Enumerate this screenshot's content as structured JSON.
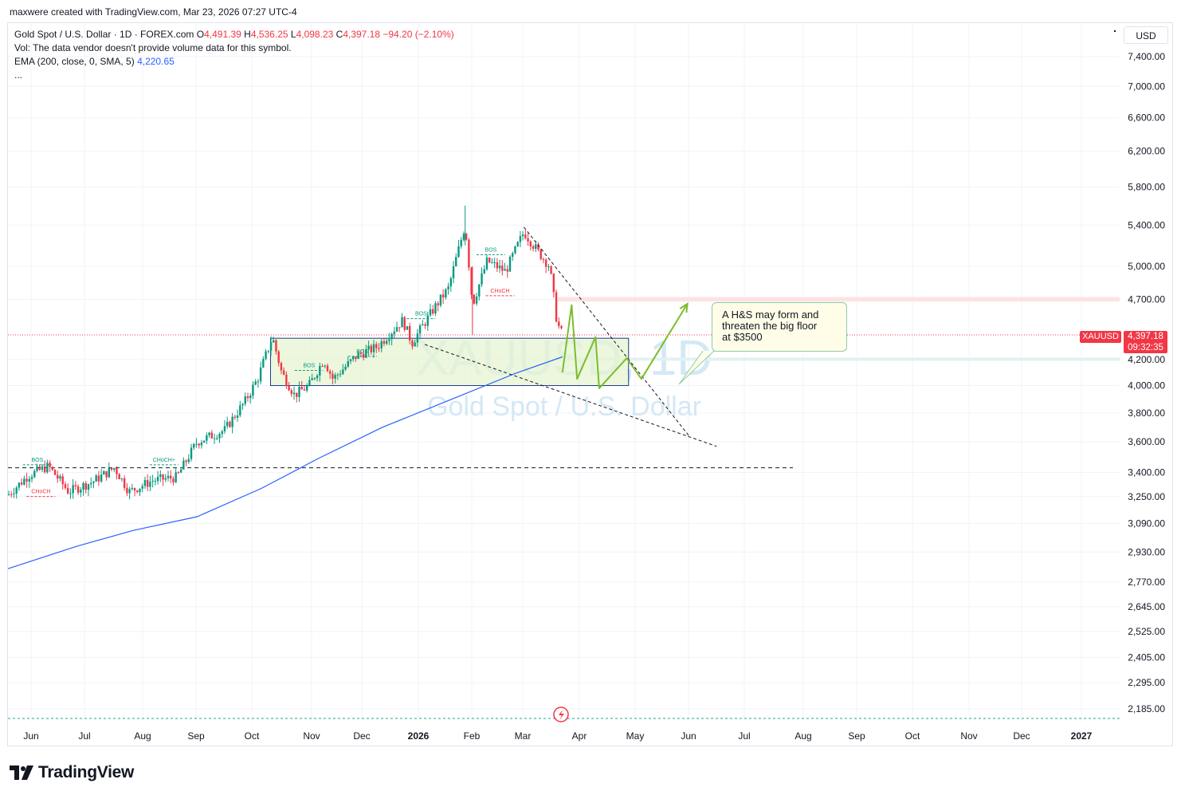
{
  "header": {
    "credit": "maxwere created with TradingView.com, Mar 23, 2026 07:27 UTC-4"
  },
  "legend": {
    "symbol": "Gold Spot / U.S. Dollar · 1D · FOREX.com",
    "o_label": "O",
    "open": "4,491.39",
    "h_label": "H",
    "high": "4,536.25",
    "l_label": "L",
    "low": "4,098.23",
    "c_label": "C",
    "close": "4,397.18",
    "change": "−94.20 (−2.10%)",
    "vol": "Vol: The data vendor doesn't provide volume data for this symbol.",
    "ema_label": "EMA (200, close, 0, SMA, 5)",
    "ema_value": "4,220.65",
    "more": "..."
  },
  "currency": "USD",
  "last_price": {
    "symbol": "XAUUSD",
    "price": "4,397.18",
    "countdown": "09:32:35"
  },
  "watermark": {
    "ticker": "XAUUSD, 1D",
    "name": "Gold Spot / U.S. Dollar"
  },
  "annotation": {
    "lines": [
      "A H&S may form and",
      "threaten the big floor",
      "at $3500"
    ]
  },
  "smc_labels": {
    "bos": "BOS",
    "choch": "CHoCH",
    "choch_plus": "CHoCH+"
  },
  "brand": "TradingView",
  "colors": {
    "up": "#089981",
    "down": "#f23645",
    "ema": "#2962ff",
    "zone_fill": "#e6f4d2",
    "zone_border": "#1e3a8a",
    "projection": "#7cbd2b"
  },
  "chart_data": {
    "type": "candlestick",
    "title": "Gold Spot / U.S. Dollar · 1D · FOREX.com",
    "y_scale": "log",
    "y_ticks": [
      "7,400.00",
      "7,000.00",
      "6,600.00",
      "6,200.00",
      "5,800.00",
      "5,400.00",
      "5,000.00",
      "4,700.00",
      "4,200.00",
      "4,000.00",
      "3,800.00",
      "3,600.00",
      "3,400.00",
      "3,250.00",
      "3,090.00",
      "2,930.00",
      "2,770.00",
      "2,645.00",
      "2,525.00",
      "2,405.00",
      "2,295.00",
      "2,185.00"
    ],
    "x_ticks": [
      "Jun",
      "Jul",
      "Aug",
      "Sep",
      "Oct",
      "Nov",
      "Dec",
      "2026",
      "Feb",
      "Mar",
      "Apr",
      "May",
      "Jun",
      "Jul",
      "Aug",
      "Sep",
      "Oct",
      "Nov",
      "Dec",
      "2027"
    ],
    "price_path": [
      {
        "date": "2025-05-25",
        "price": 3260
      },
      {
        "date": "2025-06-05",
        "price": 3380
      },
      {
        "date": "2025-06-16",
        "price": 3440
      },
      {
        "date": "2025-06-27",
        "price": 3280
      },
      {
        "date": "2025-07-10",
        "price": 3340
      },
      {
        "date": "2025-07-22",
        "price": 3430
      },
      {
        "date": "2025-07-30",
        "price": 3280
      },
      {
        "date": "2025-08-12",
        "price": 3350
      },
      {
        "date": "2025-08-25",
        "price": 3370
      },
      {
        "date": "2025-09-05",
        "price": 3600
      },
      {
        "date": "2025-09-20",
        "price": 3680
      },
      {
        "date": "2025-10-01",
        "price": 3880
      },
      {
        "date": "2025-10-08",
        "price": 4050
      },
      {
        "date": "2025-10-16",
        "price": 4380
      },
      {
        "date": "2025-10-21",
        "price": 4100
      },
      {
        "date": "2025-10-28",
        "price": 3930
      },
      {
        "date": "2025-11-05",
        "price": 4000
      },
      {
        "date": "2025-11-13",
        "price": 4200
      },
      {
        "date": "2025-11-18",
        "price": 4050
      },
      {
        "date": "2025-12-01",
        "price": 4230
      },
      {
        "date": "2025-12-12",
        "price": 4300
      },
      {
        "date": "2025-12-26",
        "price": 4520
      },
      {
        "date": "2025-12-31",
        "price": 4330
      },
      {
        "date": "2026-01-12",
        "price": 4620
      },
      {
        "date": "2026-01-20",
        "price": 4800
      },
      {
        "date": "2026-01-29",
        "price": 5400
      },
      {
        "date": "2026-02-02",
        "price": 4650
      },
      {
        "date": "2026-02-10",
        "price": 5050
      },
      {
        "date": "2026-02-20",
        "price": 4950
      },
      {
        "date": "2026-03-02",
        "price": 5330
      },
      {
        "date": "2026-03-10",
        "price": 5130
      },
      {
        "date": "2026-03-16",
        "price": 5000
      },
      {
        "date": "2026-03-20",
        "price": 4500
      },
      {
        "date": "2026-03-23",
        "price": 4397.18
      }
    ],
    "ema200": [
      {
        "date": "2025-05-25",
        "price": 2840
      },
      {
        "date": "2025-07-01",
        "price": 2960
      },
      {
        "date": "2025-08-01",
        "price": 3050
      },
      {
        "date": "2025-09-05",
        "price": 3130
      },
      {
        "date": "2025-10-10",
        "price": 3300
      },
      {
        "date": "2025-11-10",
        "price": 3490
      },
      {
        "date": "2025-12-15",
        "price": 3700
      },
      {
        "date": "2026-01-20",
        "price": 3890
      },
      {
        "date": "2026-02-25",
        "price": 4090
      },
      {
        "date": "2026-03-23",
        "price": 4220.65
      }
    ],
    "consolidation_zone": {
      "date_start": "2025-10-15",
      "date_end": "2026-04-28",
      "price_low": 4000,
      "price_high": 4370
    },
    "levels": [
      {
        "price": 3430,
        "style": "dashed"
      },
      {
        "price": 4397.18,
        "style": "dotted"
      }
    ],
    "resistance_band": {
      "price_low": 4680,
      "price_high": 4720
    },
    "trendlines": [
      {
        "from": {
          "date": "2026-01-07",
          "price": 4320
        },
        "to": {
          "date": "2026-06-15",
          "price": 3570
        }
      },
      {
        "from": {
          "date": "2026-03-02",
          "price": 5380
        },
        "to": {
          "date": "2026-05-31",
          "price": 3640
        }
      }
    ],
    "projection": [
      {
        "date": "2026-03-23",
        "price": 4100
      },
      {
        "date": "2026-03-28",
        "price": 4650
      },
      {
        "date": "2026-03-31",
        "price": 4050
      },
      {
        "date": "2026-04-10",
        "price": 4380
      },
      {
        "date": "2026-04-12",
        "price": 3980
      },
      {
        "date": "2026-04-27",
        "price": 4210
      },
      {
        "date": "2026-05-05",
        "price": 4050
      },
      {
        "date": "2026-05-30",
        "price": 4660
      }
    ],
    "smc_events": [
      {
        "label": "BOS",
        "date": "2026-01-05",
        "price": 4560
      },
      {
        "label": "BOS",
        "date": "2026-02-12",
        "price": 5140
      },
      {
        "label": "CHoCH",
        "date": "2026-02-17",
        "price": 4760
      },
      {
        "label": "BOS",
        "date": "2025-12-04",
        "price": 4250
      },
      {
        "label": "BOS",
        "date": "2025-11-05",
        "price": 4140
      },
      {
        "label": "CHoCH+",
        "date": "2025-08-18",
        "price": 3470
      },
      {
        "label": "BOS",
        "date": "2025-06-10",
        "price": 3470
      },
      {
        "label": "CHoCH",
        "date": "2025-06-12",
        "price": 3270
      }
    ]
  }
}
